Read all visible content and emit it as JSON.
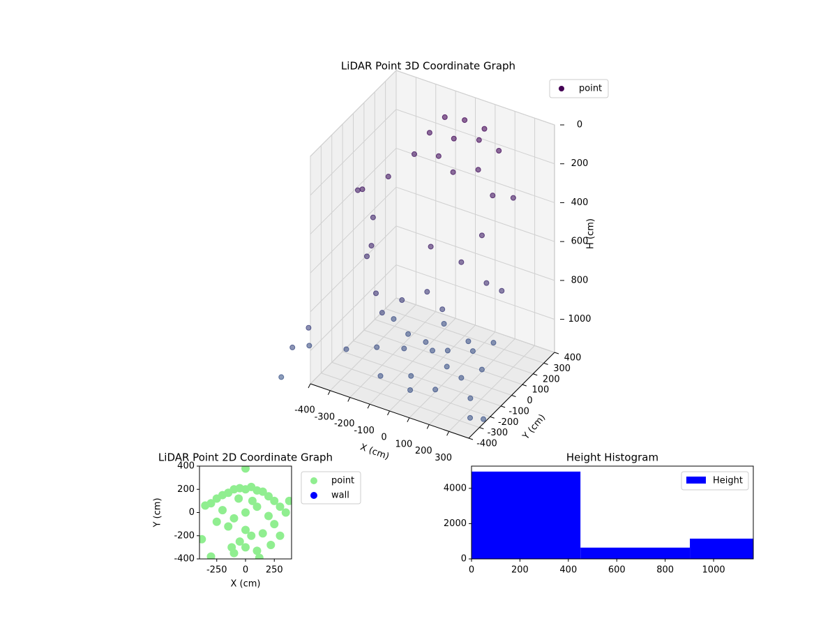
{
  "chart_data": [
    {
      "type": "scatter3d",
      "title": "LiDAR Point 3D Coordinate Graph",
      "xlabel": "X (cm)",
      "ylabel": "Y (cm)",
      "zlabel": "H (cm)",
      "xlim": [
        -400,
        400
      ],
      "ylim": [
        -400,
        400
      ],
      "zlim": [
        1170,
        0
      ],
      "xticks": [
        -400,
        -300,
        -200,
        -100,
        0,
        100,
        200,
        300
      ],
      "yticks": [
        -400,
        -300,
        -200,
        -100,
        0,
        100,
        200,
        300,
        400
      ],
      "zticks": [
        0,
        200,
        400,
        600,
        800,
        1000
      ],
      "grid": true,
      "legend": "upper right",
      "series": [
        {
          "name": "point",
          "color": "#440154",
          "colormap": [
            "#440154",
            "#3e5a8c"
          ],
          "x": [
            -100,
            0,
            100,
            200,
            -150,
            0,
            150,
            250,
            -200,
            50,
            -50,
            300,
            250,
            -250,
            100,
            -300,
            -350,
            -300,
            -250,
            -200,
            -150,
            100,
            200,
            300,
            350,
            -100,
            0,
            50,
            -200,
            0,
            50,
            -50,
            100,
            -100,
            150,
            -150,
            200,
            -200,
            0,
            100,
            -50,
            250,
            -250,
            300,
            -300,
            50,
            150,
            -100,
            200,
            -480,
            -420,
            -460,
            -520,
            380,
            420
          ],
          "y": [
            300,
            300,
            300,
            250,
            250,
            200,
            150,
            100,
            200,
            100,
            150,
            200,
            0,
            50,
            250,
            -100,
            -50,
            0,
            -150,
            -200,
            -250,
            -200,
            -100,
            -50,
            0,
            -100,
            -50,
            0,
            -100,
            0,
            50,
            30,
            -50,
            -80,
            100,
            50,
            -100,
            -150,
            -200,
            150,
            200,
            0,
            100,
            -200,
            -250,
            -300,
            -250,
            -300,
            200,
            -420,
            -380,
            -300,
            -450,
            -350,
            -300
          ],
          "z": [
            80,
            60,
            70,
            120,
            150,
            100,
            180,
            250,
            250,
            200,
            180,
            300,
            400,
            300,
            100,
            300,
            350,
            500,
            600,
            500,
            700,
            400,
            500,
            600,
            650,
            800,
            750,
            850,
            900,
            1080,
            1090,
            1070,
            1100,
            1060,
            1085,
            1075,
            1095,
            1050,
            1100,
            1080,
            1070,
            1090,
            1060,
            1110,
            1040,
            1100,
            1090,
            1080,
            1080,
            1000,
            900,
            1050,
            1150,
            1100,
            1120
          ]
        }
      ]
    },
    {
      "type": "scatter",
      "title": "LiDAR Point 2D Coordinate Graph",
      "xlabel": "X (cm)",
      "ylabel": "Y (cm)",
      "xlim": [
        -400,
        400
      ],
      "ylim": [
        -400,
        400
      ],
      "xticks": [
        -250,
        0,
        250
      ],
      "yticks": [
        -400,
        -200,
        0,
        200,
        400
      ],
      "legend": "outside right",
      "series": [
        {
          "name": "point",
          "color": "#90ee90",
          "x": [
            0,
            50,
            -50,
            100,
            -100,
            150,
            -150,
            200,
            -200,
            250,
            -250,
            300,
            -300,
            350,
            -350,
            0,
            100,
            -100,
            200,
            -200,
            0,
            50,
            -50,
            150,
            -150,
            250,
            -250,
            0,
            100,
            -100,
            300,
            -300,
            380,
            -380,
            0,
            120,
            -120,
            60,
            -60,
            220
          ],
          "y": [
            200,
            220,
            210,
            190,
            200,
            180,
            170,
            140,
            150,
            100,
            120,
            50,
            80,
            0,
            60,
            0,
            50,
            -50,
            -30,
            20,
            -150,
            -200,
            -250,
            -180,
            -120,
            -100,
            -80,
            -300,
            -330,
            -350,
            -200,
            -380,
            100,
            -230,
            380,
            -390,
            -300,
            100,
            120,
            -280
          ]
        },
        {
          "name": "wall",
          "color": "#0000ff",
          "x": [],
          "y": []
        }
      ]
    },
    {
      "type": "hist",
      "title": "Height Histogram",
      "xlim": [
        0,
        1164
      ],
      "ylim": [
        0,
        5260
      ],
      "xticks": [
        0,
        200,
        400,
        600,
        800,
        1000
      ],
      "yticks": [
        0,
        2000,
        4000
      ],
      "legend": "upper right",
      "series": [
        {
          "name": "Height",
          "color": "#0000ff",
          "bins": [
            0,
            450,
            902,
            1164
          ],
          "values": [
            4950,
            640,
            1150
          ]
        }
      ]
    }
  ]
}
